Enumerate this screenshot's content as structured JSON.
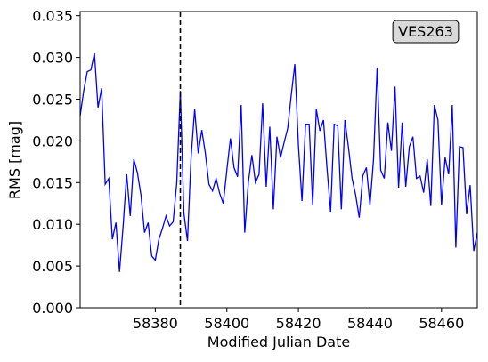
{
  "chart_data": {
    "type": "line",
    "xlabel": "Modified Julian Date",
    "ylabel": "RMS [mag]",
    "annotation": "VES263",
    "vline": 58387,
    "x": [
      58359,
      58360,
      58361,
      58362,
      58363,
      58364,
      58365,
      58366,
      58367,
      58368,
      58369,
      58370,
      58371,
      58372,
      58373,
      58374,
      58375,
      58376,
      58377,
      58378,
      58379,
      58380,
      58381,
      58382,
      58383,
      58384,
      58385,
      58386,
      58387,
      58388,
      58389,
      58390,
      58391,
      58392,
      58393,
      58394,
      58395,
      58396,
      58397,
      58398,
      58399,
      58400,
      58401,
      58402,
      58403,
      58404,
      58405,
      58406,
      58407,
      58408,
      58409,
      58410,
      58411,
      58412,
      58413,
      58414,
      58415,
      58416,
      58417,
      58418,
      58419,
      58420,
      58421,
      58422,
      58423,
      58424,
      58425,
      58426,
      58427,
      58428,
      58429,
      58430,
      58431,
      58432,
      58433,
      58434,
      58435,
      58436,
      58437,
      58438,
      58439,
      58440,
      58441,
      58442,
      58443,
      58444,
      58445,
      58446,
      58447,
      58448,
      58449,
      58450,
      58451,
      58452,
      58453,
      58454,
      58455,
      58456,
      58457,
      58458,
      58459,
      58460,
      58461,
      58462,
      58463,
      58464,
      58465,
      58466,
      58467,
      58468,
      58469,
      58470
    ],
    "series": [
      {
        "color": "#0000ff",
        "values": [
          0.023,
          0.026,
          0.0283,
          0.0285,
          0.0305,
          0.024,
          0.0263,
          0.0148,
          0.0155,
          0.0082,
          0.0102,
          0.0043,
          0.0097,
          0.016,
          0.011,
          0.0178,
          0.0162,
          0.0135,
          0.009,
          0.0102,
          0.0062,
          0.0057,
          0.0082,
          0.0095,
          0.011,
          0.0098,
          0.0103,
          0.015,
          0.026,
          0.0113,
          0.008,
          0.018,
          0.0238,
          0.0185,
          0.0213,
          0.0185,
          0.0148,
          0.014,
          0.0155,
          0.0137,
          0.0125,
          0.0165,
          0.0203,
          0.0168,
          0.0157,
          0.0243,
          0.009,
          0.015,
          0.0183,
          0.015,
          0.016,
          0.0245,
          0.0145,
          0.0217,
          0.0118,
          0.0205,
          0.018,
          0.0198,
          0.0215,
          0.0255,
          0.0292,
          0.0195,
          0.0128,
          0.022,
          0.022,
          0.0123,
          0.0238,
          0.0212,
          0.0225,
          0.0167,
          0.0115,
          0.022,
          0.0218,
          0.0118,
          0.0225,
          0.0192,
          0.0155,
          0.0135,
          0.0108,
          0.0158,
          0.0168,
          0.0123,
          0.0178,
          0.0288,
          0.0165,
          0.0155,
          0.0222,
          0.0188,
          0.0265,
          0.0144,
          0.0222,
          0.0145,
          0.0193,
          0.0205,
          0.0155,
          0.0158,
          0.0138,
          0.0178,
          0.0122,
          0.0243,
          0.0225,
          0.0123,
          0.018,
          0.016,
          0.0243,
          0.0072,
          0.0193,
          0.0192,
          0.0112,
          0.0147,
          0.0068,
          0.009
        ]
      }
    ],
    "xlim": [
      58359,
      58470
    ],
    "xticks": [
      58380,
      58400,
      58420,
      58440,
      58460
    ],
    "ylim": [
      0,
      0.0355
    ],
    "yticks": [
      {
        "value": 0,
        "label": "0.000"
      },
      0.005,
      {
        "value": 0.01,
        "label": "0.010"
      },
      0.015,
      {
        "value": 0.02,
        "label": "0.020"
      },
      0.025,
      {
        "value": 0.03,
        "label": "0.030"
      },
      0.035
    ]
  }
}
